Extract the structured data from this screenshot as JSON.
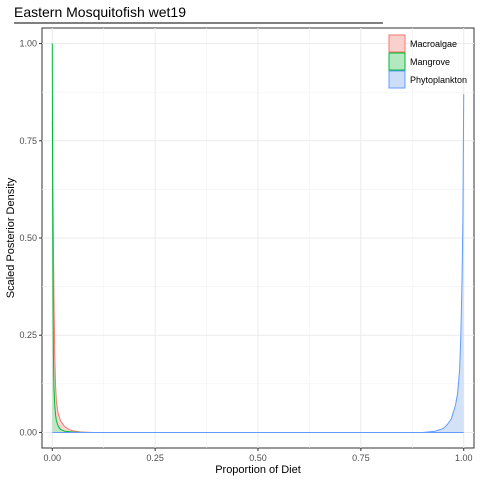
{
  "chart_data": {
    "type": "area",
    "title": "Eastern Mosquitofish wet19",
    "xlabel": "Proportion of Diet",
    "ylabel": "Scaled Posterior Density",
    "xlim": [
      -0.025,
      1.025
    ],
    "ylim": [
      -0.04,
      1.04
    ],
    "x_ticks": [
      0,
      0.25,
      0.5,
      0.75,
      1
    ],
    "x_tick_labels": [
      "0.00",
      "0.25",
      "0.50",
      "0.75",
      "1.00"
    ],
    "y_ticks": [
      0,
      0.25,
      0.5,
      0.75,
      1
    ],
    "y_tick_labels": [
      "0.00",
      "0.25",
      "0.50",
      "0.75",
      "1.00"
    ],
    "grid": true,
    "legend_position": "top-right",
    "series": [
      {
        "name": "Macroalgae",
        "line_color": "#F8766D",
        "fill_color": "#F8D0CC",
        "x": [
          0,
          0.002,
          0.004,
          0.006,
          0.008,
          0.01,
          0.014,
          0.02,
          0.03,
          0.04,
          0.05,
          0.07,
          0.1
        ],
        "values": [
          0.8,
          0.58,
          0.35,
          0.2,
          0.12,
          0.08,
          0.05,
          0.03,
          0.015,
          0.008,
          0.004,
          0.001,
          0
        ]
      },
      {
        "name": "Mangrove",
        "line_color": "#00BA38",
        "fill_color": "#B3E9C1",
        "x": [
          0,
          0.001,
          0.002,
          0.003,
          0.004,
          0.006,
          0.008,
          0.01,
          0.015,
          0.02,
          0.03,
          0.05,
          0.08
        ],
        "values": [
          1.0,
          0.55,
          0.3,
          0.18,
          0.12,
          0.07,
          0.045,
          0.03,
          0.015,
          0.008,
          0.003,
          0.001,
          0
        ]
      },
      {
        "name": "Phytoplankton",
        "line_color": "#619CFF",
        "fill_color": "#CDDDF7",
        "x": [
          0.9,
          0.93,
          0.95,
          0.96,
          0.97,
          0.98,
          0.985,
          0.99,
          0.993,
          0.996,
          0.998,
          1.0
        ],
        "values": [
          0,
          0.003,
          0.01,
          0.02,
          0.035,
          0.07,
          0.1,
          0.16,
          0.25,
          0.4,
          0.55,
          0.87
        ]
      }
    ]
  }
}
